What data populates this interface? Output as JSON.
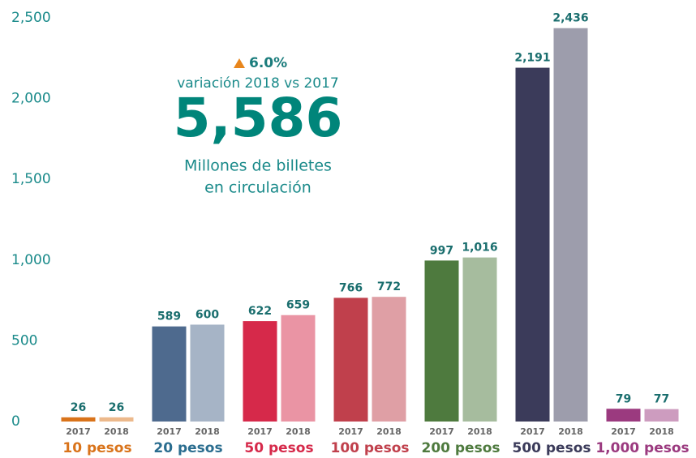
{
  "chart_data": {
    "type": "bar",
    "annotations": {
      "change": "6.0%",
      "change_label": "variación 2018 vs 2017",
      "total": "5,586",
      "total_label_1": "Millones de billetes",
      "total_label_2": "en circulación"
    },
    "categories": [
      "10 pesos",
      "20 pesos",
      "50 pesos",
      "100 pesos",
      "200 pesos",
      "500 pesos",
      "1,000 pesos"
    ],
    "colors": [
      "#d9731a",
      "#4e6a8e",
      "#d6294a",
      "#c0404c",
      "#4e7a3e",
      "#3b3b5a",
      "#9b3a7f"
    ],
    "label_colors": [
      "#d9731a",
      "#2a6d8f",
      "#d6294a",
      "#c0404c",
      "#4e7a3e",
      "#3b3b5a",
      "#9b3a7f"
    ],
    "series": [
      {
        "name": "2017",
        "values": [
          26,
          589,
          622,
          766,
          997,
          2191,
          79
        ],
        "value_labels": [
          "26",
          "589",
          "622",
          "766",
          "997",
          "2,191",
          "79"
        ]
      },
      {
        "name": "2018",
        "values": [
          26,
          600,
          659,
          772,
          1016,
          2436,
          77
        ],
        "value_labels": [
          "26",
          "600",
          "659",
          "772",
          "1,016",
          "2,436",
          "77"
        ]
      }
    ],
    "ylim": [
      0,
      2500
    ],
    "yticks": [
      0,
      500,
      {
        "value": 1000,
        "label": "1,000"
      },
      {
        "value": 1500,
        "label": "1,500"
      },
      {
        "value": 2000,
        "label": "2,000"
      },
      {
        "value": 2500,
        "label": "2,500"
      }
    ],
    "grid": false
  }
}
